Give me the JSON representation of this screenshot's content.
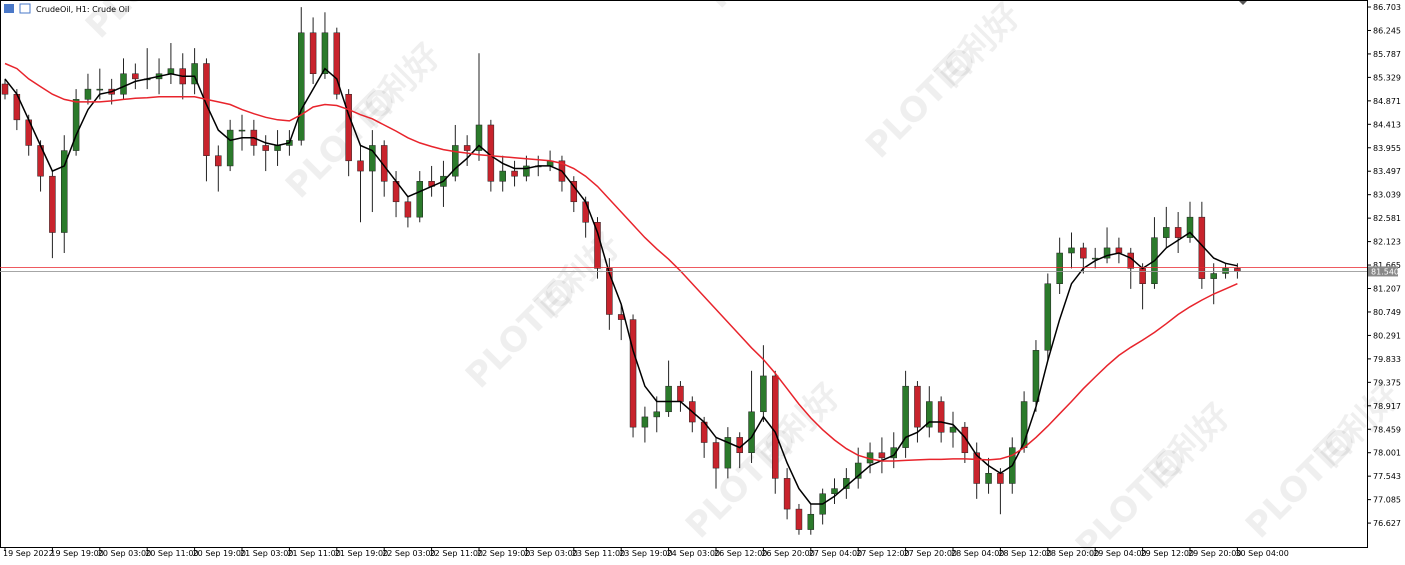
{
  "chart_data": {
    "type": "candlestick",
    "title": "CrudeOil, H1:  Crude Oil",
    "watermark": "PLOTIO",
    "watermark_cn": "百利好",
    "up_color": "#2b7a2b",
    "down_color": "#c8232c",
    "grid": false,
    "ylim": [
      76.16,
      86.84
    ],
    "yticks": [
      86.703,
      86.245,
      85.787,
      85.329,
      84.871,
      84.413,
      83.955,
      83.497,
      83.039,
      82.581,
      82.123,
      81.665,
      81.207,
      80.749,
      80.291,
      79.833,
      79.375,
      78.917,
      78.459,
      78.001,
      77.543,
      77.085,
      76.627
    ],
    "bid": {
      "value": 81.54,
      "label": "81.540"
    },
    "ask": 81.62,
    "categories": [
      "19 Sep 2022",
      null,
      null,
      null,
      "19 Sep 19:00",
      null,
      null,
      null,
      "20 Sep 03:00",
      null,
      null,
      null,
      "20 Sep 11:00",
      null,
      null,
      null,
      "20 Sep 19:00",
      null,
      null,
      null,
      "21 Sep 03:00",
      null,
      null,
      null,
      "21 Sep 11:00",
      null,
      null,
      null,
      "21 Sep 19:00",
      null,
      null,
      null,
      "22 Sep 03:00",
      null,
      null,
      null,
      "22 Sep 11:00",
      null,
      null,
      null,
      "22 Sep 19:00",
      null,
      null,
      null,
      "23 Sep 03:00",
      null,
      null,
      null,
      "23 Sep 11:00",
      null,
      null,
      null,
      "23 Sep 19:00",
      null,
      null,
      null,
      "24 Sep 03:00",
      null,
      null,
      null,
      "26 Sep 12:00",
      null,
      null,
      null,
      "26 Sep 20:00",
      null,
      null,
      null,
      "27 Sep 04:00",
      null,
      null,
      null,
      "27 Sep 12:00",
      null,
      null,
      null,
      "27 Sep 20:00",
      null,
      null,
      null,
      "28 Sep 04:00",
      null,
      null,
      null,
      "28 Sep 12:00",
      null,
      null,
      null,
      "28 Sep 20:00",
      null,
      null,
      null,
      "29 Sep 04:00",
      null,
      null,
      null,
      "29 Sep 12:00",
      null,
      null,
      null,
      "29 Sep 20:00",
      null,
      null,
      null,
      "30 Sep 04:00"
    ],
    "ohlc": [
      [
        85.2,
        85.3,
        84.9,
        85.0
      ],
      [
        85.0,
        85.1,
        84.3,
        84.5
      ],
      [
        84.5,
        84.6,
        83.8,
        84.0
      ],
      [
        84.0,
        84.1,
        83.1,
        83.4
      ],
      [
        83.4,
        83.5,
        81.8,
        82.3
      ],
      [
        82.3,
        84.2,
        81.9,
        83.9
      ],
      [
        83.9,
        85.1,
        83.8,
        84.9
      ],
      [
        84.9,
        85.4,
        84.8,
        85.1
      ],
      [
        85.1,
        85.5,
        84.9,
        85.1
      ],
      [
        85.1,
        85.3,
        84.8,
        85.0
      ],
      [
        85.0,
        85.7,
        84.9,
        85.4
      ],
      [
        85.4,
        85.6,
        85.1,
        85.3
      ],
      [
        85.3,
        85.9,
        85.1,
        85.3
      ],
      [
        85.3,
        85.7,
        85.0,
        85.4
      ],
      [
        85.4,
        86.0,
        85.2,
        85.5
      ],
      [
        85.5,
        85.8,
        84.9,
        85.2
      ],
      [
        85.2,
        85.9,
        85.0,
        85.6
      ],
      [
        85.6,
        85.7,
        83.3,
        83.8
      ],
      [
        83.8,
        84.0,
        83.1,
        83.6
      ],
      [
        83.6,
        84.5,
        83.5,
        84.3
      ],
      [
        84.3,
        84.6,
        83.9,
        84.3
      ],
      [
        84.3,
        84.5,
        83.8,
        84.0
      ],
      [
        84.0,
        84.2,
        83.5,
        83.9
      ],
      [
        83.9,
        84.3,
        83.6,
        84.0
      ],
      [
        84.0,
        84.3,
        83.8,
        84.1
      ],
      [
        84.1,
        86.7,
        84.0,
        86.2
      ],
      [
        86.2,
        86.5,
        85.2,
        85.4
      ],
      [
        85.4,
        86.6,
        85.3,
        86.2
      ],
      [
        86.2,
        86.3,
        84.9,
        85.0
      ],
      [
        85.0,
        85.1,
        83.4,
        83.7
      ],
      [
        83.7,
        84.0,
        82.5,
        83.5
      ],
      [
        83.5,
        84.3,
        82.7,
        84.0
      ],
      [
        84.0,
        84.1,
        83.0,
        83.3
      ],
      [
        83.3,
        83.5,
        82.6,
        82.9
      ],
      [
        82.9,
        83.0,
        82.4,
        82.6
      ],
      [
        82.6,
        83.5,
        82.5,
        83.3
      ],
      [
        83.3,
        83.6,
        83.0,
        83.2
      ],
      [
        83.2,
        83.7,
        82.8,
        83.4
      ],
      [
        83.4,
        84.4,
        83.3,
        84.0
      ],
      [
        84.0,
        84.2,
        83.6,
        83.9
      ],
      [
        83.9,
        85.8,
        83.7,
        84.4
      ],
      [
        84.4,
        84.5,
        83.1,
        83.3
      ],
      [
        83.3,
        83.8,
        83.1,
        83.5
      ],
      [
        83.5,
        83.7,
        83.2,
        83.4
      ],
      [
        83.4,
        83.8,
        83.3,
        83.6
      ],
      [
        83.6,
        83.8,
        83.4,
        83.6
      ],
      [
        83.6,
        83.9,
        83.5,
        83.7
      ],
      [
        83.7,
        83.8,
        83.1,
        83.3
      ],
      [
        83.3,
        83.4,
        82.7,
        82.9
      ],
      [
        82.9,
        83.0,
        82.2,
        82.5
      ],
      [
        82.5,
        82.6,
        81.4,
        81.6
      ],
      [
        81.6,
        81.8,
        80.4,
        80.7
      ],
      [
        80.7,
        80.9,
        80.2,
        80.6
      ],
      [
        80.6,
        80.7,
        78.3,
        78.5
      ],
      [
        78.5,
        78.9,
        78.2,
        78.7
      ],
      [
        78.7,
        79.1,
        78.4,
        78.8
      ],
      [
        78.8,
        79.8,
        78.7,
        79.3
      ],
      [
        79.3,
        79.4,
        78.8,
        79.0
      ],
      [
        79.0,
        79.1,
        78.4,
        78.6
      ],
      [
        78.6,
        78.7,
        77.9,
        78.2
      ],
      [
        78.2,
        78.3,
        77.3,
        77.7
      ],
      [
        77.7,
        78.5,
        77.5,
        78.3
      ],
      [
        78.3,
        78.4,
        77.7,
        78.0
      ],
      [
        78.0,
        79.6,
        77.8,
        78.8
      ],
      [
        78.8,
        80.1,
        78.6,
        79.5
      ],
      [
        79.5,
        79.6,
        77.2,
        77.5
      ],
      [
        77.5,
        77.7,
        76.7,
        76.9
      ],
      [
        76.9,
        77.0,
        76.4,
        76.5
      ],
      [
        76.5,
        77.0,
        76.4,
        76.8
      ],
      [
        76.8,
        77.3,
        76.6,
        77.2
      ],
      [
        77.2,
        77.5,
        77.0,
        77.3
      ],
      [
        77.3,
        77.7,
        77.1,
        77.5
      ],
      [
        77.5,
        78.1,
        77.3,
        77.8
      ],
      [
        77.8,
        78.2,
        77.6,
        78.0
      ],
      [
        78.0,
        78.3,
        77.6,
        77.9
      ],
      [
        77.9,
        78.4,
        77.7,
        78.1
      ],
      [
        78.1,
        79.6,
        77.9,
        79.3
      ],
      [
        79.3,
        79.4,
        78.2,
        78.5
      ],
      [
        78.5,
        79.3,
        78.3,
        79.0
      ],
      [
        79.0,
        79.1,
        78.2,
        78.4
      ],
      [
        78.4,
        78.8,
        78.1,
        78.5
      ],
      [
        78.5,
        78.6,
        77.8,
        78.0
      ],
      [
        78.0,
        78.2,
        77.1,
        77.4
      ],
      [
        77.4,
        77.9,
        77.2,
        77.6
      ],
      [
        77.6,
        77.7,
        76.8,
        77.4
      ],
      [
        77.4,
        78.3,
        77.2,
        78.1
      ],
      [
        78.1,
        79.2,
        78.0,
        79.0
      ],
      [
        79.0,
        80.2,
        78.8,
        80.0
      ],
      [
        80.0,
        81.5,
        79.8,
        81.3
      ],
      [
        81.3,
        82.2,
        81.1,
        81.9
      ],
      [
        81.9,
        82.3,
        81.6,
        82.0
      ],
      [
        82.0,
        82.1,
        81.5,
        81.8
      ],
      [
        81.8,
        82.0,
        81.6,
        81.8
      ],
      [
        81.8,
        82.4,
        81.7,
        82.0
      ],
      [
        82.0,
        82.2,
        81.7,
        81.9
      ],
      [
        81.9,
        82.0,
        81.2,
        81.6
      ],
      [
        81.6,
        81.7,
        80.8,
        81.3
      ],
      [
        81.3,
        82.6,
        81.2,
        82.2
      ],
      [
        82.2,
        82.8,
        82.0,
        82.4
      ],
      [
        82.4,
        82.7,
        81.9,
        82.2
      ],
      [
        82.2,
        82.9,
        82.1,
        82.6
      ],
      [
        82.6,
        82.9,
        81.2,
        81.4
      ],
      [
        81.4,
        81.7,
        80.9,
        81.5
      ],
      [
        81.5,
        81.7,
        81.4,
        81.6
      ],
      [
        81.6,
        81.7,
        81.4,
        81.54
      ]
    ],
    "series": [
      {
        "color": "#000000",
        "values": [
          85.3,
          85.0,
          84.5,
          84.0,
          83.5,
          83.6,
          84.2,
          84.7,
          85.0,
          85.05,
          85.15,
          85.25,
          85.3,
          85.35,
          85.4,
          85.35,
          85.35,
          84.8,
          84.3,
          84.1,
          84.15,
          84.15,
          84.05,
          84.0,
          84.05,
          84.7,
          85.1,
          85.5,
          85.3,
          84.6,
          84.0,
          83.9,
          83.6,
          83.3,
          83.0,
          83.1,
          83.2,
          83.3,
          83.55,
          83.75,
          84.0,
          83.8,
          83.65,
          83.55,
          83.55,
          83.6,
          83.6,
          83.5,
          83.2,
          82.9,
          82.3,
          81.5,
          80.9,
          80.0,
          79.3,
          79.0,
          79.0,
          79.0,
          78.8,
          78.6,
          78.3,
          78.2,
          78.1,
          78.3,
          78.7,
          78.4,
          77.8,
          77.3,
          77.0,
          77.0,
          77.15,
          77.35,
          77.55,
          77.75,
          77.85,
          77.95,
          78.3,
          78.4,
          78.6,
          78.6,
          78.55,
          78.3,
          77.95,
          77.75,
          77.6,
          77.75,
          78.2,
          78.9,
          79.8,
          80.6,
          81.3,
          81.6,
          81.75,
          81.85,
          81.9,
          81.8,
          81.6,
          81.75,
          82.0,
          82.15,
          82.3,
          82.05,
          81.8,
          81.7,
          81.65
        ]
      },
      {
        "color": "#e8242c",
        "values": [
          85.6,
          85.5,
          85.3,
          85.15,
          85.0,
          84.9,
          84.85,
          84.85,
          84.85,
          84.87,
          84.9,
          84.92,
          84.93,
          84.95,
          84.95,
          84.95,
          84.95,
          84.9,
          84.85,
          84.8,
          84.7,
          84.62,
          84.55,
          84.5,
          84.48,
          84.6,
          84.75,
          84.8,
          84.78,
          84.7,
          84.6,
          84.52,
          84.4,
          84.28,
          84.15,
          84.05,
          83.98,
          83.92,
          83.88,
          83.85,
          83.82,
          83.8,
          83.78,
          83.76,
          83.74,
          83.72,
          83.7,
          83.65,
          83.55,
          83.4,
          83.2,
          82.95,
          82.7,
          82.45,
          82.2,
          81.98,
          81.78,
          81.55,
          81.3,
          81.05,
          80.8,
          80.55,
          80.3,
          80.05,
          79.82,
          79.55,
          79.25,
          78.95,
          78.68,
          78.45,
          78.25,
          78.08,
          77.95,
          77.88,
          77.84,
          77.84,
          77.85,
          77.86,
          77.87,
          77.87,
          77.88,
          77.88,
          77.87,
          77.86,
          77.88,
          77.95,
          78.1,
          78.3,
          78.52,
          78.76,
          79.0,
          79.25,
          79.48,
          79.7,
          79.9,
          80.06,
          80.2,
          80.35,
          80.52,
          80.7,
          80.85,
          80.98,
          81.1,
          81.2,
          81.3
        ]
      }
    ]
  }
}
